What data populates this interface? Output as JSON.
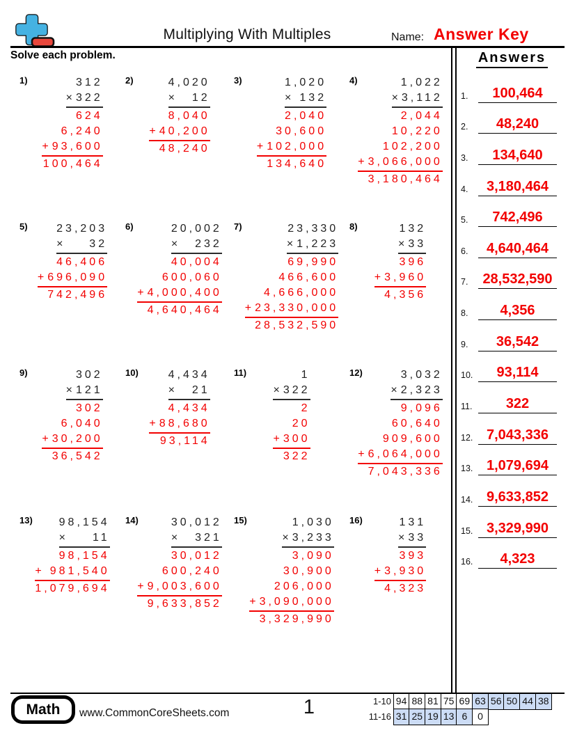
{
  "colors": {
    "accent_red": "#f20000",
    "logo_blue": "#45b2e2",
    "logo_red": "#e8473c",
    "score_shaded": "#ccdcf5"
  },
  "header": {
    "title": "Multiplying With Multiples",
    "name_label": "Name:",
    "name_value": "Answer Key",
    "instructions": "Solve each problem."
  },
  "problems_section": {
    "op": "×",
    "plus": "+",
    "items": [
      {
        "num": "1)",
        "multiplicand": "312",
        "multiplier": "322",
        "partials": [
          "624",
          "6,240",
          "93,600"
        ],
        "product": "100,464"
      },
      {
        "num": "2)",
        "multiplicand": "4,020",
        "multiplier": "12",
        "partials": [
          "8,040",
          "40,200"
        ],
        "product": "48,240"
      },
      {
        "num": "3)",
        "multiplicand": "1,020",
        "multiplier": "132",
        "partials": [
          "2,040",
          "30,600",
          "102,000"
        ],
        "product": "134,640"
      },
      {
        "num": "4)",
        "multiplicand": "1,022",
        "multiplier": "3,112",
        "partials": [
          "2,044",
          "10,220",
          "102,200",
          "3,066,000"
        ],
        "product": "3,180,464"
      },
      {
        "num": "5)",
        "multiplicand": "23,203",
        "multiplier": "32",
        "partials": [
          "46,406",
          "696,090"
        ],
        "product": "742,496"
      },
      {
        "num": "6)",
        "multiplicand": "20,002",
        "multiplier": "232",
        "partials": [
          "40,004",
          "600,060",
          "4,000,400"
        ],
        "product": "4,640,464"
      },
      {
        "num": "7)",
        "multiplicand": "23,330",
        "multiplier": "1,223",
        "partials": [
          "69,990",
          "466,600",
          "4,666,000",
          "23,330,000"
        ],
        "product": "28,532,590"
      },
      {
        "num": "8)",
        "multiplicand": "132",
        "multiplier": "33",
        "partials": [
          "396",
          "3,960"
        ],
        "product": "4,356"
      },
      {
        "num": "9)",
        "multiplicand": "302",
        "multiplier": "121",
        "partials": [
          "302",
          "6,040",
          "30,200"
        ],
        "product": "36,542"
      },
      {
        "num": "10)",
        "multiplicand": "4,434",
        "multiplier": "21",
        "partials": [
          "4,434",
          "88,680"
        ],
        "product": "93,114"
      },
      {
        "num": "11)",
        "multiplicand": "1",
        "multiplier": "322",
        "partials": [
          "2",
          "20",
          "300"
        ],
        "product": "322"
      },
      {
        "num": "12)",
        "multiplicand": "3,032",
        "multiplier": "2,323",
        "partials": [
          "9,096",
          "60,640",
          "909,600",
          "6,064,000"
        ],
        "product": "7,043,336"
      },
      {
        "num": "13)",
        "multiplicand": "98,154",
        "multiplier": "11",
        "partials": [
          "98,154",
          "981,540"
        ],
        "product": "1,079,694"
      },
      {
        "num": "14)",
        "multiplicand": "30,012",
        "multiplier": "321",
        "partials": [
          "30,012",
          "600,240",
          "9,003,600"
        ],
        "product": "9,633,852"
      },
      {
        "num": "15)",
        "multiplicand": "1,030",
        "multiplier": "3,233",
        "partials": [
          "3,090",
          "30,900",
          "206,000",
          "3,090,000"
        ],
        "product": "3,329,990"
      },
      {
        "num": "16)",
        "multiplicand": "131",
        "multiplier": "33",
        "partials": [
          "393",
          "3,930"
        ],
        "product": "4,323"
      }
    ]
  },
  "answers_panel": {
    "title": "Answers",
    "items": [
      {
        "num": "1.",
        "value": "100,464"
      },
      {
        "num": "2.",
        "value": "48,240"
      },
      {
        "num": "3.",
        "value": "134,640"
      },
      {
        "num": "4.",
        "value": "3,180,464"
      },
      {
        "num": "5.",
        "value": "742,496"
      },
      {
        "num": "6.",
        "value": "4,640,464"
      },
      {
        "num": "7.",
        "value": "28,532,590"
      },
      {
        "num": "8.",
        "value": "4,356"
      },
      {
        "num": "9.",
        "value": "36,542"
      },
      {
        "num": "10.",
        "value": "93,114"
      },
      {
        "num": "11.",
        "value": "322"
      },
      {
        "num": "12.",
        "value": "7,043,336"
      },
      {
        "num": "13.",
        "value": "1,079,694"
      },
      {
        "num": "14.",
        "value": "9,633,852"
      },
      {
        "num": "15.",
        "value": "3,329,990"
      },
      {
        "num": "16.",
        "value": "4,323"
      }
    ]
  },
  "footer": {
    "badge": "Math",
    "website": "www.CommonCoreSheets.com",
    "page": "1",
    "score_rows": [
      {
        "label": "1-10",
        "cells": [
          {
            "value": "94",
            "shaded": false
          },
          {
            "value": "88",
            "shaded": false
          },
          {
            "value": "81",
            "shaded": false
          },
          {
            "value": "75",
            "shaded": false
          },
          {
            "value": "69",
            "shaded": false
          },
          {
            "value": "63",
            "shaded": true
          },
          {
            "value": "56",
            "shaded": true
          },
          {
            "value": "50",
            "shaded": true
          },
          {
            "value": "44",
            "shaded": true
          },
          {
            "value": "38",
            "shaded": true
          }
        ]
      },
      {
        "label": "11-16",
        "cells": [
          {
            "value": "31",
            "shaded": true
          },
          {
            "value": "25",
            "shaded": true
          },
          {
            "value": "19",
            "shaded": true
          },
          {
            "value": "13",
            "shaded": true
          },
          {
            "value": "6",
            "shaded": true
          },
          {
            "value": "0",
            "shaded": false
          }
        ]
      }
    ]
  }
}
